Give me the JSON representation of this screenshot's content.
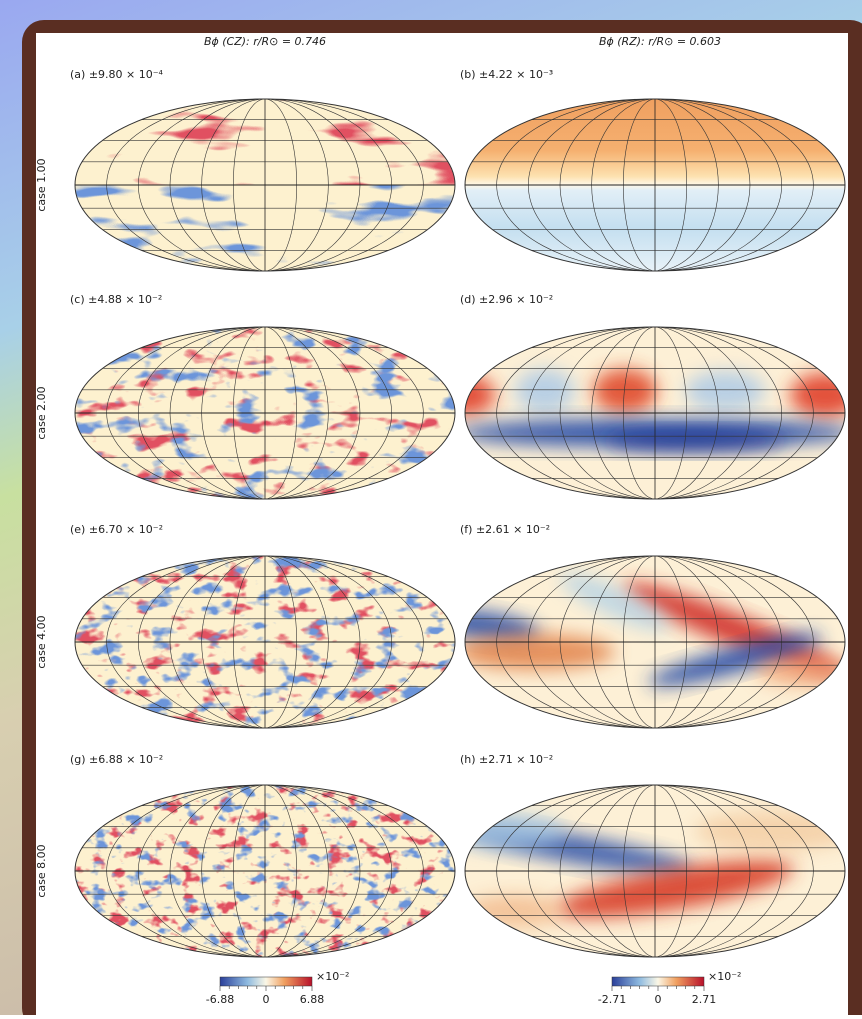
{
  "columns": [
    "Bϕ (CZ): r/R⊙ = 0.746",
    "Bϕ (RZ): r/R⊙ = 0.603"
  ],
  "rows": [
    "case 1.00",
    "case 2.00",
    "case 4.00",
    "case 8.00"
  ],
  "panels": [
    [
      "(a) ±9.80 × 10⁻⁴",
      "(b) ±4.22 × 10⁻³"
    ],
    [
      "(c) ±4.88 × 10⁻²",
      "(d) ±2.96 × 10⁻²"
    ],
    [
      "(e) ±6.70 × 10⁻²",
      "(f) ±2.61 × 10⁻²"
    ],
    [
      "(g) ±6.88 × 10⁻²",
      "(h) ±2.71 × 10⁻²"
    ]
  ],
  "colorbars": [
    {
      "ticks": [
        "-6.88",
        "0",
        "6.88"
      ],
      "scale": "×10⁻²"
    },
    {
      "ticks": [
        "-2.71",
        "0",
        "2.71"
      ],
      "scale": "×10⁻²"
    }
  ]
}
